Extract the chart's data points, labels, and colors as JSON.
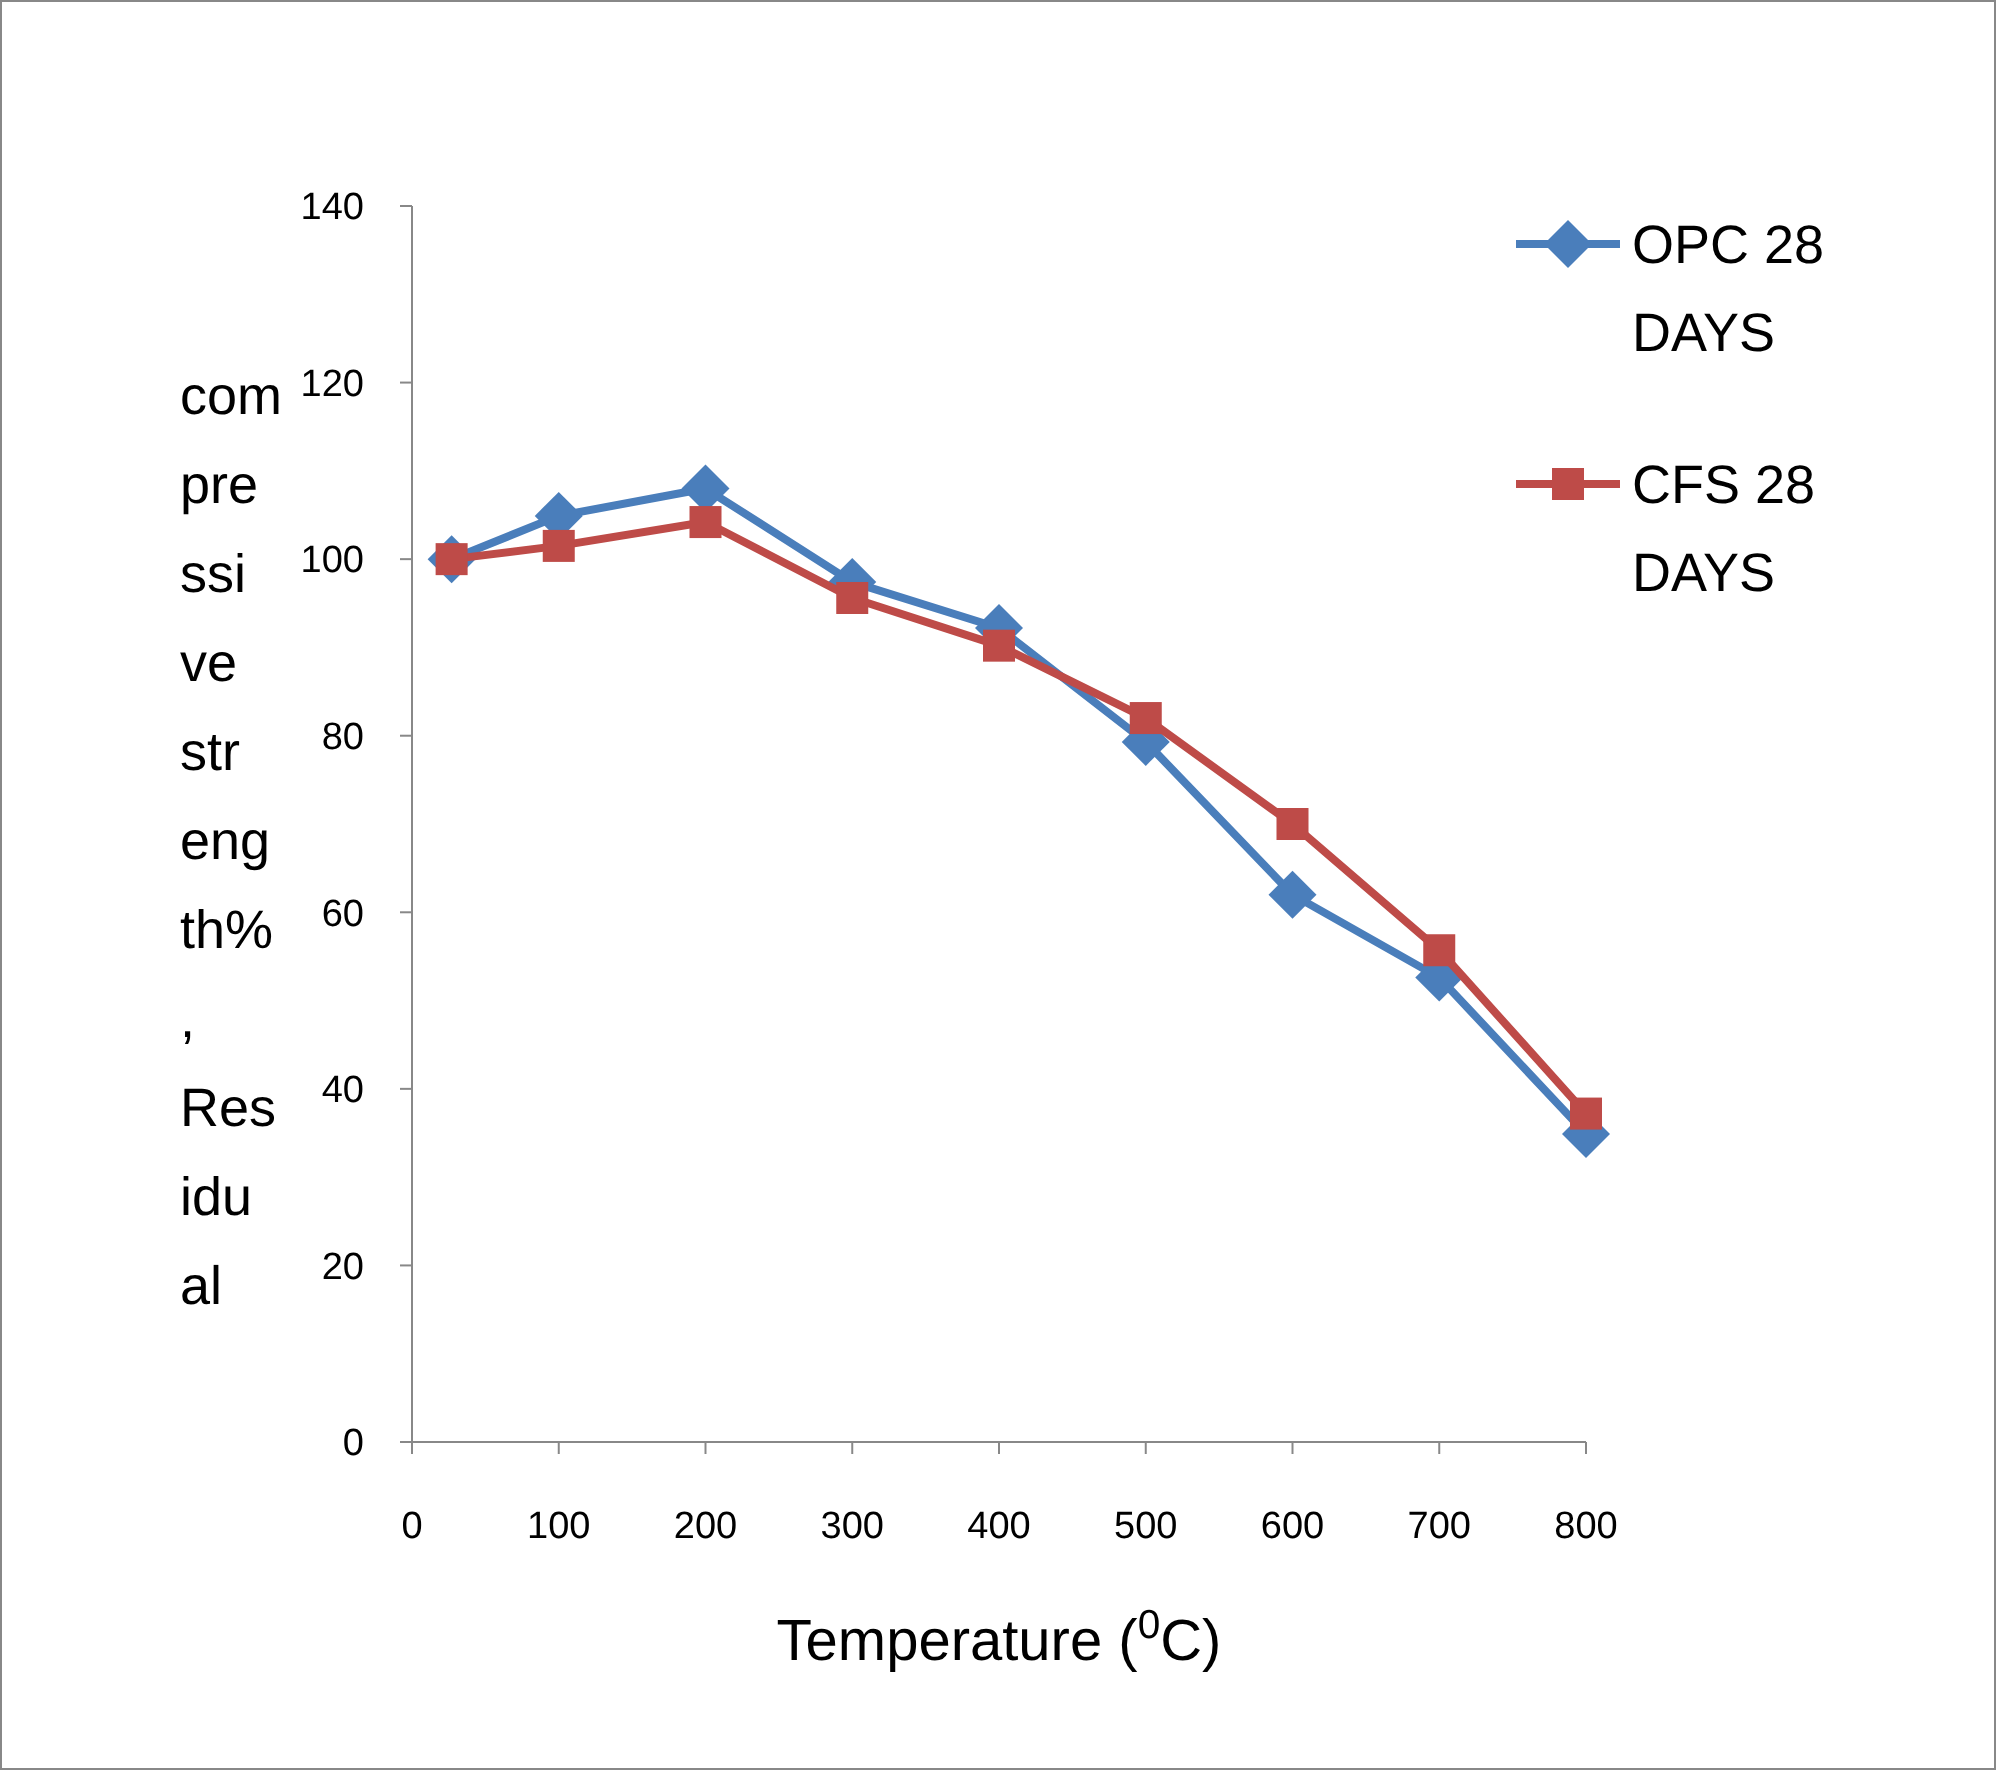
{
  "chart_data": {
    "type": "line",
    "xlabel": "Temperature ($^{0}$C)",
    "ylabel": "compressive strength%, Residual",
    "xlim": [
      0,
      800
    ],
    "xticks": [
      0,
      100,
      200,
      300,
      400,
      500,
      600,
      700,
      800
    ],
    "ylim": [
      0,
      140
    ],
    "yticks": [
      0,
      20,
      40,
      60,
      80,
      100,
      120,
      140
    ],
    "x": [
      27,
      100,
      200,
      300,
      400,
      500,
      600,
      700,
      800
    ],
    "series": [
      {
        "name": "OPC 28 DAYS",
        "color": "#4a7ebb",
        "marker": "diamond",
        "values": [
          100,
          104.9,
          108,
          97.4,
          92.2,
          79.3,
          62,
          52.6,
          34.9
        ]
      },
      {
        "name": "CFS 28 DAYS",
        "color": "#be4b48",
        "marker": "square",
        "values": [
          100,
          101.5,
          104.2,
          95.6,
          90.2,
          82,
          70,
          55.7,
          37.2
        ]
      }
    ],
    "legend": "right",
    "grid": false
  }
}
